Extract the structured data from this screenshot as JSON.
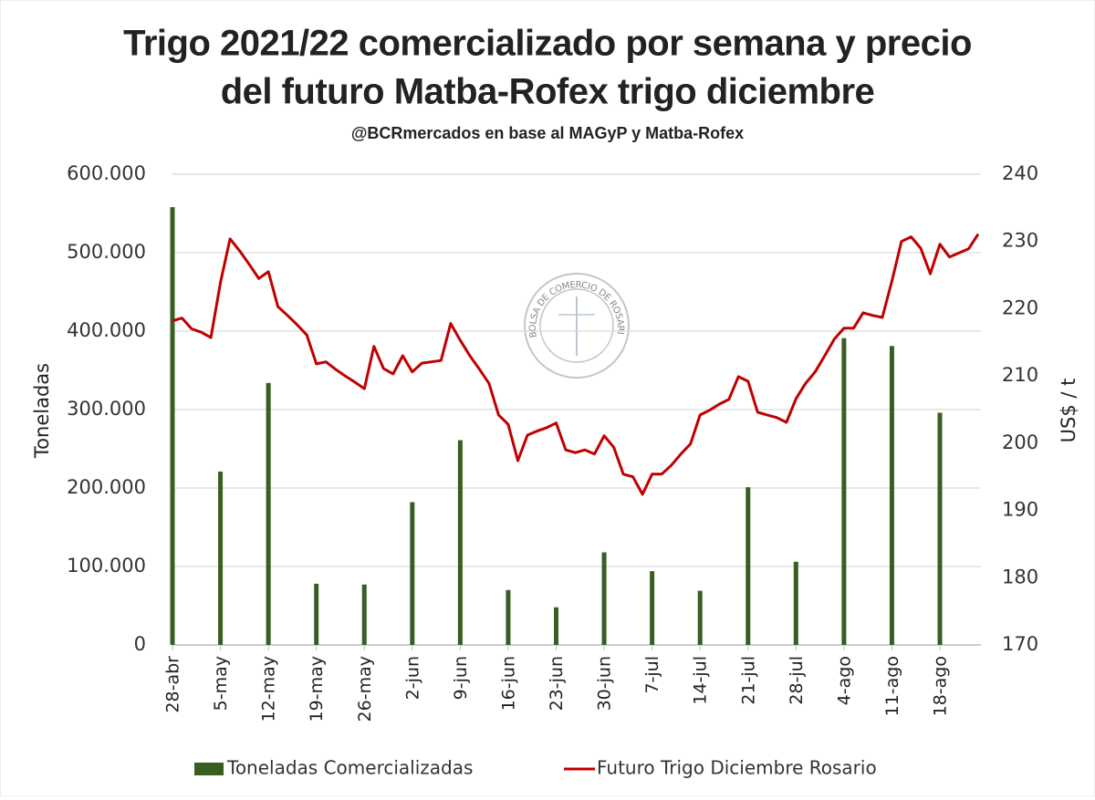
{
  "chart_data": {
    "type": "combo",
    "title": [
      "Trigo 2021/22 comercializado por semana y precio",
      "del futuro Matba-Rofex trigo diciembre"
    ],
    "subtitle": "@BCRmercados en base al MAGyP y Matba-Rofex",
    "watermark": "BOLSA DE COMERCIO DE ROSARIO",
    "y_label": "Toneladas",
    "y2_label": "US$ / t",
    "categories": [
      "28-abr",
      null,
      null,
      null,
      null,
      "5-may",
      null,
      null,
      null,
      null,
      "12-may",
      null,
      null,
      null,
      null,
      "19-may",
      null,
      null,
      null,
      null,
      "26-may",
      null,
      null,
      null,
      null,
      "2-jun",
      null,
      null,
      null,
      null,
      "9-jun",
      null,
      null,
      null,
      null,
      "16-jun",
      null,
      null,
      null,
      null,
      "23-jun",
      null,
      null,
      null,
      null,
      "30-jun",
      null,
      null,
      null,
      null,
      "7-jul",
      null,
      null,
      null,
      null,
      "14-jul",
      null,
      null,
      null,
      null,
      "21-jul",
      null,
      null,
      null,
      null,
      "28-jul",
      null,
      null,
      null,
      null,
      "4-ago",
      null,
      null,
      null,
      null,
      "11-ago",
      null,
      null,
      null,
      null,
      "18-ago",
      null,
      null,
      null,
      null
    ],
    "series": [
      {
        "name": "Toneladas Comercializadas",
        "type": "bar",
        "color": "#3a5e22",
        "values": [
          558000,
          null,
          null,
          null,
          null,
          221000,
          null,
          null,
          null,
          null,
          334000,
          null,
          null,
          null,
          null,
          78000,
          null,
          null,
          null,
          null,
          77000,
          null,
          null,
          null,
          null,
          182000,
          null,
          null,
          null,
          null,
          261000,
          null,
          null,
          null,
          null,
          70000,
          null,
          null,
          null,
          null,
          48000,
          null,
          null,
          null,
          null,
          118000,
          null,
          null,
          null,
          null,
          94000,
          null,
          null,
          null,
          null,
          69000,
          null,
          null,
          null,
          null,
          201000,
          null,
          null,
          null,
          null,
          106000,
          null,
          null,
          null,
          null,
          391000,
          null,
          null,
          null,
          null,
          381000,
          null,
          null,
          null,
          null,
          296000,
          null,
          null,
          null,
          null
        ]
      },
      {
        "name": "Futuro Trigo Diciembre Rosario",
        "type": "line",
        "axis": "y2",
        "color": "#c00000",
        "values": [
          218.2,
          218.6,
          217.0,
          216.5,
          215.7,
          223.9,
          230.4,
          228.6,
          226.6,
          224.5,
          225.5,
          220.3,
          219.0,
          217.6,
          216.1,
          211.8,
          212.1,
          211.0,
          210.0,
          209.1,
          208.1,
          214.4,
          211.1,
          210.3,
          213.0,
          210.6,
          211.9,
          212.1,
          212.3,
          217.8,
          215.3,
          213.0,
          211.0,
          208.9,
          204.2,
          202.8,
          197.4,
          201.2,
          201.8,
          202.3,
          203.0,
          199.0,
          198.6,
          199.0,
          198.4,
          201.1,
          199.4,
          195.4,
          195.0,
          192.4,
          195.4,
          195.4,
          196.7,
          198.4,
          199.9,
          204.2,
          204.9,
          205.8,
          206.5,
          209.9,
          209.2,
          204.6,
          204.2,
          203.8,
          203.1,
          206.6,
          208.9,
          210.6,
          213.0,
          215.5,
          217.1,
          217.1,
          219.4,
          219.0,
          218.7,
          224.1,
          230.0,
          230.7,
          229.0,
          225.2,
          229.6,
          227.7,
          228.3,
          228.9,
          231.1
        ]
      }
    ],
    "ylim": [
      0,
      600000
    ],
    "yticks": [
      0,
      {
        "value": 100000,
        "label": "100.000"
      },
      {
        "value": 200000,
        "label": "200.000"
      },
      {
        "value": 300000,
        "label": "300.000"
      },
      {
        "value": 400000,
        "label": "400.000"
      },
      {
        "value": 500000,
        "label": "500.000"
      },
      {
        "value": 600000,
        "label": "600.000"
      }
    ],
    "y2lim": [
      170,
      240
    ],
    "y2ticks": [
      170,
      180,
      190,
      200,
      210,
      220,
      230,
      240
    ],
    "grid": true,
    "legend": "bottom"
  }
}
